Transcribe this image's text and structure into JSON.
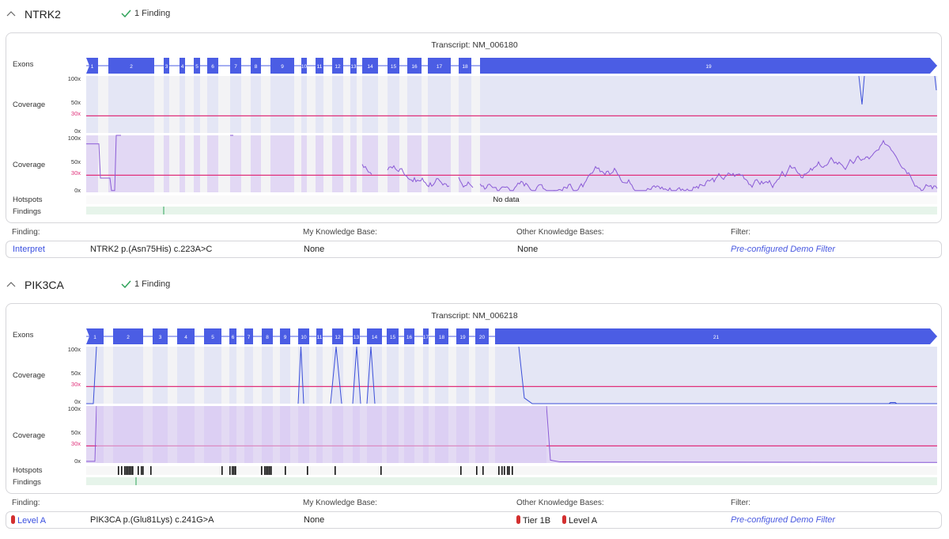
{
  "genes": [
    {
      "name": "NTRK2",
      "finding_count": "1 Finding",
      "transcript": "Transcript: NM_006180",
      "exon_labels": [
        "1",
        "2",
        "3",
        "4",
        "5",
        "6",
        "7",
        "8",
        "9",
        "10",
        "11",
        "12",
        "13",
        "14",
        "15",
        "16",
        "17",
        "18",
        "19"
      ],
      "track_labels": {
        "exons": "Exons",
        "coverage1": "Coverage",
        "coverage2": "Coverage",
        "hotspots": "Hotspots",
        "findings": "Findings"
      },
      "axis_ticks": [
        "100x",
        "50x",
        "30x",
        "0x"
      ],
      "hotspots_text": "No data",
      "finding_headers": {
        "finding": "Finding:",
        "my_kb": "My Knowledge Base:",
        "other_kb": "Other Knowledge Bases:",
        "filter": "Filter:"
      },
      "finding": {
        "action": "Interpret",
        "variant": "NTRK2 p.(Asn75His) c.223A>C",
        "my_kb": "None",
        "other_kb": "None",
        "filter": "Pre-configured Demo Filter"
      }
    },
    {
      "name": "PIK3CA",
      "finding_count": "1 Finding",
      "transcript": "Transcript: NM_006218",
      "exon_labels": [
        "1",
        "2",
        "3",
        "4",
        "5",
        "6",
        "7",
        "8",
        "9",
        "10",
        "11",
        "12",
        "13",
        "14",
        "15",
        "16",
        "17",
        "18",
        "19",
        "20",
        "21"
      ],
      "track_labels": {
        "exons": "Exons",
        "coverage1": "Coverage",
        "coverage2": "Coverage",
        "hotspots": "Hotspots",
        "findings": "Findings"
      },
      "axis_ticks": [
        "100x",
        "50x",
        "30x",
        "0x"
      ],
      "hotspots_text": "",
      "finding_headers": {
        "finding": "Finding:",
        "my_kb": "My Knowledge Base:",
        "other_kb": "Other Knowledge Bases:",
        "filter": "Filter:"
      },
      "finding": {
        "action": "Level A",
        "variant": "PIK3CA p.(Glu81Lys) c.241G>A",
        "my_kb": "None",
        "other_kb_1": "Tier 1B",
        "other_kb_2": "Level A",
        "filter": "Pre-configured Demo Filter"
      }
    }
  ],
  "colors": {
    "exon": "#4b5de4",
    "coverage_line_1": "#3b4fd9",
    "coverage_line_2": "#8a5ad6",
    "threshold": "#e0307a",
    "findings_track": "#e6f4ea",
    "finding_mark": "#2fa35a",
    "pill": "#d32f2f"
  }
}
